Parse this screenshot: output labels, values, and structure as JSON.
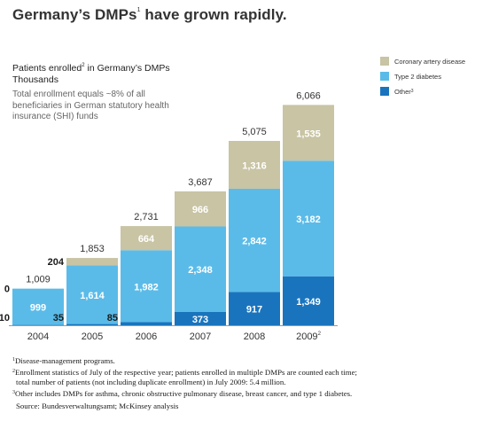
{
  "headline": "Germany’s DMPs",
  "headline_mark": "1",
  "headline_rest": " have grown rapidly.",
  "subtitle_a": "Patients enrolled",
  "subtitle_mark": "2",
  "subtitle_b": " in Germany’s DMPs",
  "subtitle_units": "Thousands",
  "note": "Total enrollment equals ~8% of all beneficiaries in German statutory health insurance (SHI) funds",
  "legend": [
    {
      "label": "Coronary artery disease",
      "mark": ""
    },
    {
      "label": "Type 2 diabetes",
      "mark": ""
    },
    {
      "label": "Other",
      "mark": "3"
    }
  ],
  "colors": {
    "cad": "#c8c4a4",
    "t2d": "#5bbbe8",
    "other": "#1a74bd",
    "axis": "#999999"
  },
  "chart_data": {
    "type": "bar",
    "stacked": true,
    "categories": [
      "2004",
      "2005",
      "2006",
      "2007",
      "2008",
      "2009"
    ],
    "category_marks": [
      "",
      "",
      "",
      "",
      "",
      "2"
    ],
    "series": [
      {
        "name": "Other",
        "values": [
          10,
          35,
          85,
          373,
          917,
          1349
        ]
      },
      {
        "name": "Type 2 diabetes",
        "values": [
          999,
          1614,
          1982,
          2348,
          2842,
          3182
        ]
      },
      {
        "name": "Coronary artery disease",
        "values": [
          0,
          204,
          664,
          966,
          1316,
          1535
        ]
      }
    ],
    "totals": [
      "1,009",
      "1,853",
      "2,731",
      "3,687",
      "5,075",
      "6,066"
    ],
    "segment_labels": [
      [
        "10",
        "35",
        "85",
        "373",
        "917",
        "1,349"
      ],
      [
        "999",
        "1,614",
        "1,982",
        "2,348",
        "2,842",
        "3,182"
      ],
      [
        "0",
        "204",
        "664",
        "966",
        "1,316",
        "1,535"
      ]
    ],
    "ylim": [
      0,
      6100
    ]
  },
  "footnotes": [
    {
      "mark": "1",
      "text": "Disease-management programs.",
      "indent": ""
    },
    {
      "mark": "2",
      "text": "Enrollment statistics of July of the respective year; patients enrolled in multiple DMPs are counted each time;",
      "indent": "total number of patients (not including duplicate enrollment) in July 2009: 5.4 million."
    },
    {
      "mark": "3",
      "text": "Other includes DMPs for asthma, chronic obstructive pulmonary disease, breast cancer, and type 1 diabetes.",
      "indent": ""
    }
  ],
  "source": "Source: Bundesverwaltungsamt; McKinsey analysis"
}
